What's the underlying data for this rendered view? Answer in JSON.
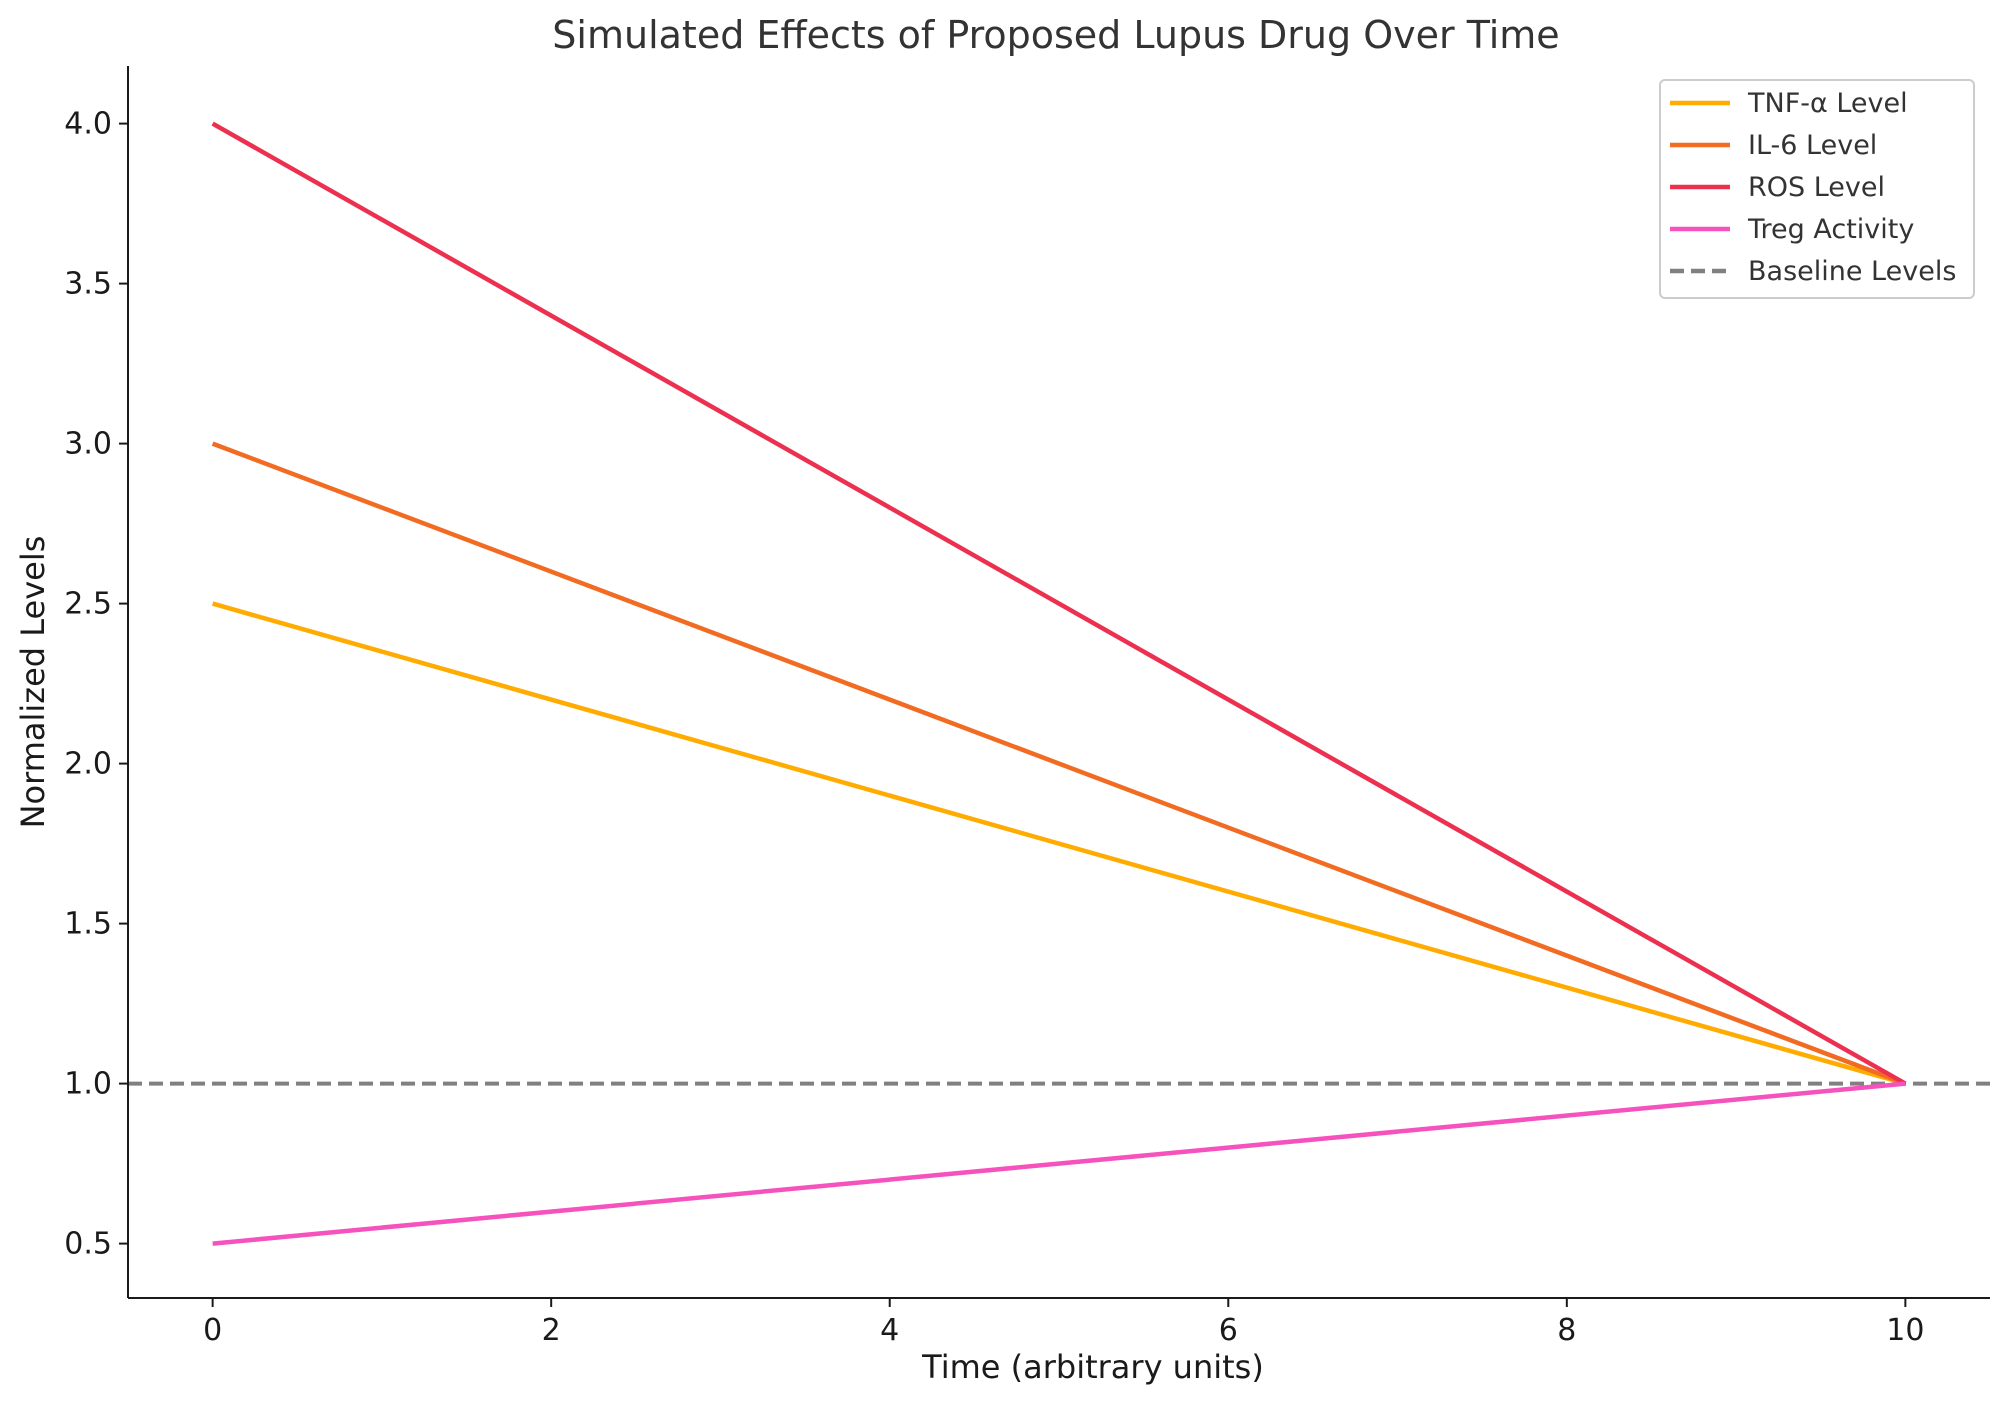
{
  "chart_data": {
    "type": "line",
    "title": "Simulated Effects of Proposed Lupus Drug Over Time",
    "xlabel": "Time (arbitrary units)",
    "ylabel": "Normalized Levels",
    "xlim": [
      -0.5,
      10.5
    ],
    "ylim": [
      0.33,
      4.18
    ],
    "x_ticks": [
      "0",
      "2",
      "4",
      "6",
      "8",
      "10"
    ],
    "y_ticks": [
      "0.5",
      "1.0",
      "1.5",
      "2.0",
      "2.5",
      "3.0",
      "3.5",
      "4.0"
    ],
    "grid": false,
    "legend_position": "top-right",
    "x": [
      0,
      10
    ],
    "series": [
      {
        "name": "TNF-α Level",
        "values": [
          2.5,
          1.0
        ],
        "color": "#ffab00",
        "style": "solid"
      },
      {
        "name": "IL-6 Level",
        "values": [
          3.0,
          1.0
        ],
        "color": "#f26b22",
        "style": "solid"
      },
      {
        "name": "ROS Level",
        "values": [
          4.0,
          1.0
        ],
        "color": "#ec3050",
        "style": "solid"
      },
      {
        "name": "Treg Activity",
        "values": [
          0.5,
          1.0
        ],
        "color": "#f652be",
        "style": "solid"
      }
    ],
    "reference_lines": [
      {
        "name": "Baseline Levels",
        "y": 1.0,
        "color": "#808080",
        "style": "dashed"
      }
    ]
  }
}
